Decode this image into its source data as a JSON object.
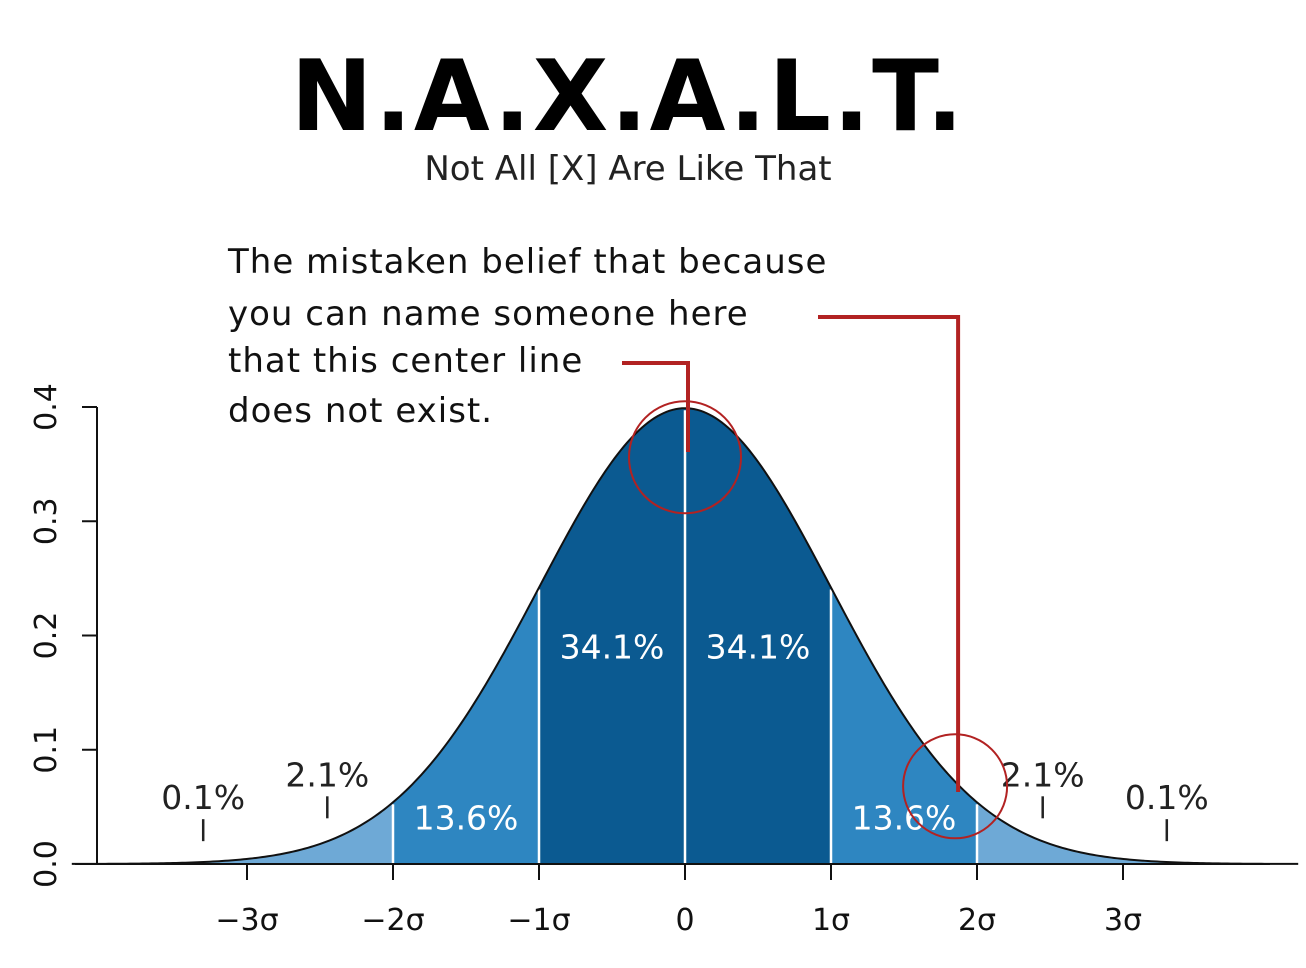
{
  "chart_data": {
    "type": "area",
    "title": "N.A.X.A.L.T.",
    "subtitle": "Not All [X] Are Like That",
    "annotation": {
      "lines": [
        "The mistaken belief that because",
        "you can name someone here",
        "that this center line",
        "does not exist."
      ],
      "center_target_x": 0,
      "tail_target_x": 1.85,
      "color": "#b22222"
    },
    "distribution": "standard-normal",
    "xlim": [
      -4.2,
      4.2
    ],
    "ylim": [
      0,
      0.4
    ],
    "y_ticks": [
      {
        "value": 0.0,
        "label": "0.0"
      },
      {
        "value": 0.1,
        "label": "0.1"
      },
      {
        "value": 0.2,
        "label": "0.2"
      },
      {
        "value": 0.3,
        "label": "0.3"
      },
      {
        "value": 0.4,
        "label": "0.4"
      }
    ],
    "x_ticks": [
      {
        "value": -3,
        "label": "−3σ"
      },
      {
        "value": -2,
        "label": "−2σ"
      },
      {
        "value": -1,
        "label": "−1σ"
      },
      {
        "value": 0,
        "label": "0"
      },
      {
        "value": 1,
        "label": "1σ"
      },
      {
        "value": 2,
        "label": "2σ"
      },
      {
        "value": 3,
        "label": "3σ"
      }
    ],
    "regions": [
      {
        "from": -4.2,
        "to": -2,
        "color": "#6ea9d6"
      },
      {
        "from": -2,
        "to": -1,
        "color": "#2e86c1"
      },
      {
        "from": -1,
        "to": 0,
        "color": "#0b5a91"
      },
      {
        "from": 0,
        "to": 1,
        "color": "#0b5a91"
      },
      {
        "from": 1,
        "to": 2,
        "color": "#2e86c1"
      },
      {
        "from": 2,
        "to": 4.2,
        "color": "#6ea9d6"
      }
    ],
    "divider_lines": [
      -2,
      -1,
      0,
      1,
      2
    ],
    "percent_labels": [
      {
        "text": "0.1%",
        "x": -3.3,
        "y": 0.048,
        "tick_x": -3.3,
        "color": "#222222"
      },
      {
        "text": "2.1%",
        "x": -2.45,
        "y": 0.068,
        "tick_x": -2.45,
        "color": "#222222"
      },
      {
        "text": "13.6%",
        "x": -1.5,
        "y": 0.03,
        "color": "#ffffff"
      },
      {
        "text": "34.1%",
        "x": -0.5,
        "y": 0.18,
        "color": "#ffffff"
      },
      {
        "text": "34.1%",
        "x": 0.5,
        "y": 0.18,
        "color": "#ffffff"
      },
      {
        "text": "13.6%",
        "x": 1.5,
        "y": 0.03,
        "color": "#ffffff"
      },
      {
        "text": "2.1%",
        "x": 2.45,
        "y": 0.068,
        "tick_x": 2.45,
        "color": "#222222"
      },
      {
        "text": "0.1%",
        "x": 3.3,
        "y": 0.048,
        "tick_x": 3.3,
        "color": "#222222"
      }
    ]
  }
}
